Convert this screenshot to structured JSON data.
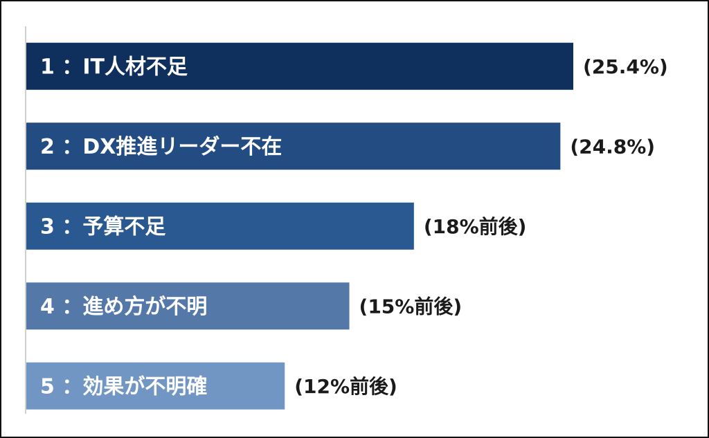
{
  "chart_data": {
    "type": "bar",
    "orientation": "horizontal",
    "categories": [
      "1 ：IT人材不足",
      "2 ：DX推進リーダー不在",
      "3 ：予算不足",
      "4 ：進め方が不明",
      "5 ：効果が不明確"
    ],
    "values": [
      25.4,
      24.8,
      18,
      15,
      12
    ],
    "value_labels": [
      "(25.4%)",
      "(24.8%)",
      "(18%前後)",
      "(15%前後)",
      "(12%前後)"
    ],
    "colors": [
      "#0f2f5c",
      "#234c83",
      "#2a5890",
      "#5478a8",
      "#7196c3"
    ]
  }
}
